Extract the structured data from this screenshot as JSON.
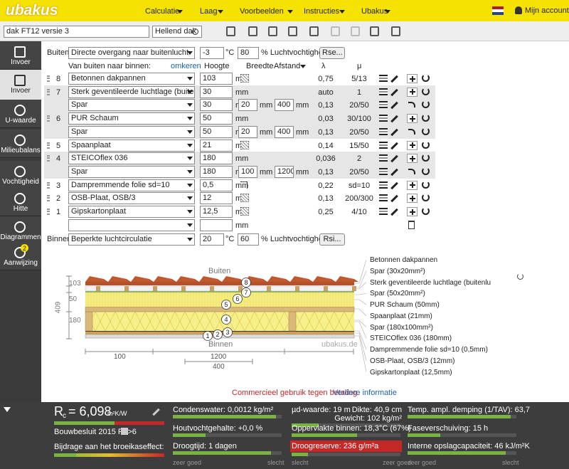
{
  "header": {
    "logo": "ubakus",
    "nav": [
      "Calculatie",
      "Laag",
      "Voorbeelden",
      "Instructies",
      "Ubakus"
    ],
    "account": "Mijn account"
  },
  "toolbar": {
    "name": "dak FT12 versie 3",
    "roof_type": "Hellend dak"
  },
  "sidebar": {
    "items": [
      "Invoer",
      "Invoer",
      "U-waarde",
      "Milieubalans",
      "Vochtigheid",
      "Hitte",
      "Diagrammen",
      "Aanwijzing"
    ],
    "badge": "2"
  },
  "outside": {
    "label": "Buiten:",
    "transition": "Directe overgang naar buitenlucht",
    "temperature": "-3",
    "temperature_unit": "°C",
    "humidity": "80",
    "humidity_label": "% Luchtvochtigheid",
    "button": "Rse..."
  },
  "columns": {
    "title": "Van buiten naar binnen:",
    "reverse": "omkeren",
    "height": "Hoogte",
    "width": "Breedte",
    "distance": "Afstand",
    "lambda": "λ",
    "mu": "μ"
  },
  "unit": "mm",
  "layers": [
    {
      "num": "8",
      "material": "Betonnen dakpannen",
      "height": "103",
      "lambda": "0,75",
      "mu": "5/13"
    },
    {
      "num": "7",
      "material": "Sterk geventileerde luchtlage (buitenl",
      "height": "30",
      "lambda": "auto",
      "mu": "1"
    },
    {
      "material": "Spar",
      "height": "30",
      "width": "20",
      "distance": "400",
      "lambda": "0,13",
      "mu": "20/50"
    },
    {
      "num": "6",
      "material": "PUR Schaum",
      "height": "50",
      "lambda": "0,03",
      "mu": "30/100"
    },
    {
      "material": "Spar",
      "height": "50",
      "width": "20",
      "distance": "400",
      "lambda": "0,13",
      "mu": "20/50"
    },
    {
      "num": "5",
      "material": "Spaanplaat",
      "height": "21",
      "lambda": "0,14",
      "mu": "15/50"
    },
    {
      "num": "4",
      "material": "STEICOflex 036",
      "height": "180",
      "lambda": "0,036",
      "mu": "2"
    },
    {
      "material": "Spar",
      "height": "180",
      "width": "100",
      "distance": "1200",
      "lambda": "0,13",
      "mu": "20/50"
    },
    {
      "num": "3",
      "material": "Dampremmende folie sd=10",
      "height": "0,5",
      "lambda": "0,22",
      "mu": "sd=10"
    },
    {
      "num": "2",
      "material": "OSB-Plaat, OSB/3",
      "height": "12",
      "lambda": "0,13",
      "mu": "200/300"
    },
    {
      "num": "1",
      "material": "Gipskartonplaat",
      "height": "12,5",
      "lambda": "0,25",
      "mu": "4/10"
    }
  ],
  "inside": {
    "label": "Binnen:",
    "transition": "Beperkte luchtcirculatie",
    "temperature": "20",
    "temperature_unit": "°C",
    "humidity": "60",
    "humidity_label": "% Luchtvochtigheid",
    "button": "Rsi..."
  },
  "diagram": {
    "outside": "Buiten",
    "inside": "Binnen",
    "watermark": "ubakus.de",
    "dimensions_left": [
      "103",
      "50",
      "409",
      "180"
    ],
    "dimensions_bottom": [
      "100",
      "1200",
      "400"
    ],
    "markers": [
      "1",
      "2",
      "3",
      "4",
      "5",
      "6",
      "7",
      "8"
    ],
    "legend": [
      "Betonnen dakpannen",
      "Spar (30x20mm²)",
      "Sterk geventileerde luchtlage (buitenlu",
      "Spar (50x20mm²)",
      "PUR Schaum (50mm)",
      "Spaanplaat (21mm)",
      "Spar (180x100mm²)",
      "STEICOflex 036 (180mm)",
      "Dampremmende folie sd=10 (0,5mm)",
      "OSB-Plaat, OSB/3 (12mm)",
      "Gipskartonplaat (12,5mm)"
    ]
  },
  "notice": {
    "text": "Commercieel gebruik tegen betaling.",
    "link": "Verdere informatie"
  },
  "results": {
    "rc": {
      "symbol": "R",
      "subscript": "c",
      "value": "= 6,098",
      "unit": "m²K/W"
    },
    "standard": "Bouwbesluit 2015 Rc>6",
    "greenhouse": "Bijdrage aan het broeikaseffect:",
    "condensate": "Condenswater: 0,0012 kg/m²",
    "wood_moisture": "Houtvochtgehalte: +0,0 %",
    "drying_time": "Droogtijd: 1 dagen",
    "sd_value": "µd-waarde: 19 m",
    "thickness": "Dikte: 40,9 cm",
    "weight": "Gewicht: 102 kg/m²",
    "surface_inside": "Oppervlakte binnen: 18,3°C (67%)",
    "drying_reserve": "Droogreserve: 236 g/m²a",
    "damping": "Temp. ampl. demping (1/TAV): 63,7",
    "phase_shift": "Faseverschuiving: 15 h",
    "storage": "Interne opslagcapaciteit: 46 kJ/m²K",
    "scale_good": "zeer goed",
    "scale_bad": "slecht"
  }
}
